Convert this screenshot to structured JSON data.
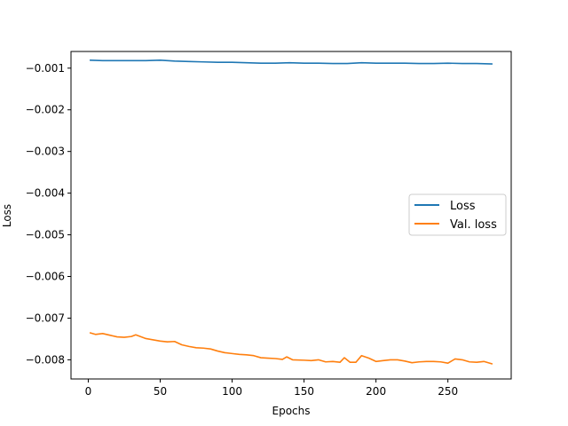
{
  "chart_data": {
    "type": "line",
    "title": "",
    "xlabel": "Epochs",
    "ylabel": "Loss",
    "xlim": [
      -12,
      294
    ],
    "ylim": [
      -0.00846,
      -0.0006
    ],
    "x_ticks": [
      0,
      50,
      100,
      150,
      200,
      250
    ],
    "x_tick_labels": [
      "0",
      "50",
      "100",
      "150",
      "200",
      "250"
    ],
    "y_ticks": [
      -0.001,
      -0.002,
      -0.003,
      -0.004,
      -0.005,
      -0.006,
      -0.007,
      -0.008
    ],
    "y_tick_labels": [
      "−0.001",
      "−0.002",
      "−0.003",
      "−0.004",
      "−0.005",
      "−0.006",
      "−0.007",
      "−0.008"
    ],
    "grid": false,
    "legend_position": "center-right",
    "series": [
      {
        "name": "Loss",
        "color": "#1f77b4",
        "x": [
          1,
          10,
          20,
          30,
          40,
          50,
          60,
          70,
          80,
          90,
          100,
          110,
          120,
          130,
          140,
          150,
          160,
          170,
          180,
          190,
          200,
          210,
          220,
          230,
          240,
          250,
          260,
          270,
          281
        ],
        "y": [
          -0.00081,
          -0.00082,
          -0.00082,
          -0.00082,
          -0.00082,
          -0.00081,
          -0.00083,
          -0.00084,
          -0.00085,
          -0.00086,
          -0.00086,
          -0.00087,
          -0.00088,
          -0.00088,
          -0.00087,
          -0.00088,
          -0.00088,
          -0.00089,
          -0.00089,
          -0.00087,
          -0.00088,
          -0.00088,
          -0.00088,
          -0.00089,
          -0.00089,
          -0.00088,
          -0.00089,
          -0.00089,
          -0.0009
        ]
      },
      {
        "name": "Val. loss",
        "color": "#ff7f0e",
        "x": [
          1,
          5,
          10,
          15,
          20,
          25,
          30,
          33,
          40,
          50,
          55,
          60,
          65,
          70,
          75,
          80,
          85,
          90,
          95,
          100,
          105,
          110,
          115,
          120,
          125,
          130,
          135,
          138,
          142,
          150,
          155,
          160,
          165,
          170,
          175,
          178,
          182,
          186,
          190,
          195,
          200,
          205,
          210,
          215,
          220,
          225,
          230,
          235,
          240,
          245,
          250,
          255,
          260,
          265,
          270,
          275,
          281
        ],
        "y": [
          -0.00735,
          -0.00739,
          -0.00737,
          -0.00741,
          -0.00745,
          -0.00746,
          -0.00744,
          -0.0074,
          -0.00749,
          -0.00755,
          -0.00757,
          -0.00756,
          -0.00764,
          -0.00768,
          -0.00771,
          -0.00772,
          -0.00774,
          -0.00779,
          -0.00783,
          -0.00785,
          -0.00787,
          -0.00788,
          -0.0079,
          -0.00795,
          -0.00796,
          -0.00797,
          -0.00799,
          -0.00793,
          -0.008,
          -0.00801,
          -0.00802,
          -0.008,
          -0.00805,
          -0.00804,
          -0.00806,
          -0.00795,
          -0.00806,
          -0.00806,
          -0.0079,
          -0.00796,
          -0.00804,
          -0.00802,
          -0.008,
          -0.008,
          -0.00803,
          -0.00807,
          -0.00805,
          -0.00804,
          -0.00804,
          -0.00805,
          -0.00808,
          -0.00798,
          -0.008,
          -0.00805,
          -0.00806,
          -0.00804,
          -0.0081
        ]
      }
    ]
  }
}
